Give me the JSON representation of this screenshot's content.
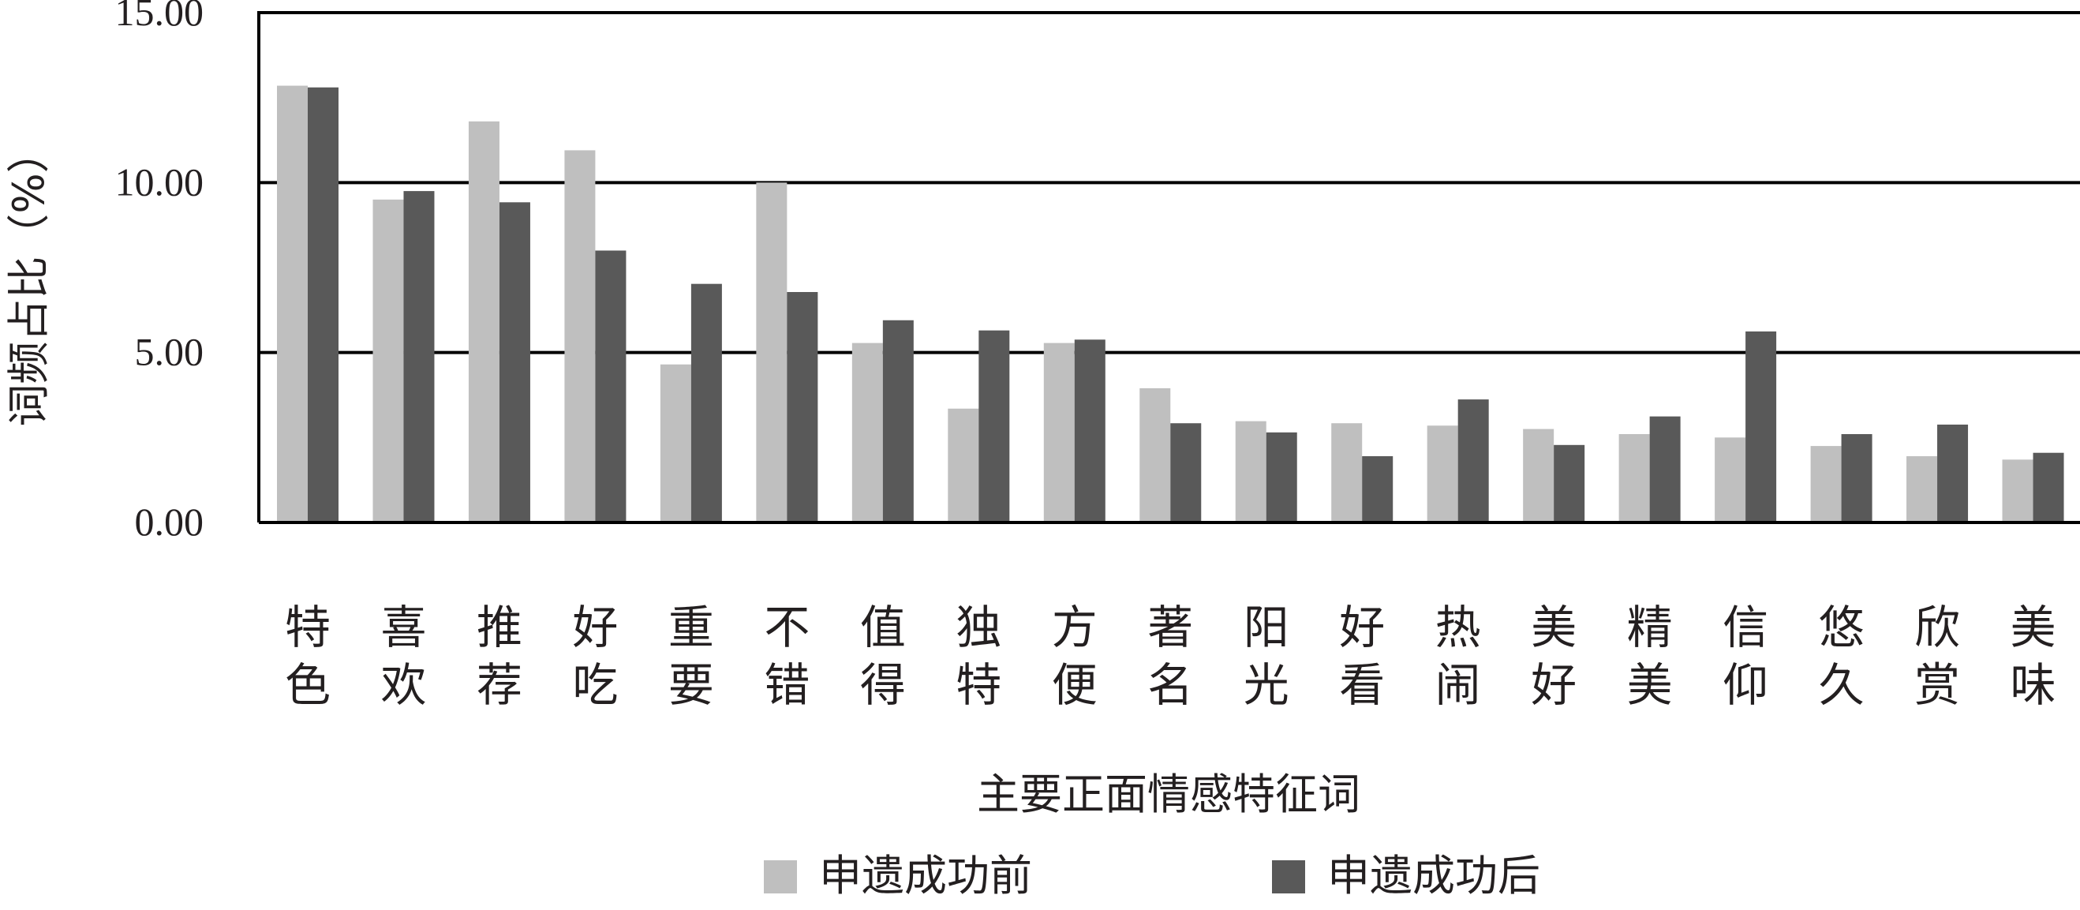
{
  "chart_data": {
    "type": "bar",
    "categories": [
      "特色",
      "喜欢",
      "推荐",
      "好吃",
      "重要",
      "不错",
      "值得",
      "独特",
      "方便",
      "著名",
      "阳光",
      "好看",
      "热闹",
      "美好",
      "精美",
      "信仰",
      "悠久",
      "欣赏",
      "美味"
    ],
    "category_lines": [
      [
        "特",
        "色"
      ],
      [
        "喜",
        "欢"
      ],
      [
        "推",
        "荐"
      ],
      [
        "好",
        "吃"
      ],
      [
        "重",
        "要"
      ],
      [
        "不",
        "错"
      ],
      [
        "值",
        "得"
      ],
      [
        "独",
        "特"
      ],
      [
        "方",
        "便"
      ],
      [
        "著",
        "名"
      ],
      [
        "阳",
        "光"
      ],
      [
        "好",
        "看"
      ],
      [
        "热",
        "闹"
      ],
      [
        "美",
        "好"
      ],
      [
        "精",
        "美"
      ],
      [
        "信",
        "仰"
      ],
      [
        "悠",
        "久"
      ],
      [
        "欣",
        "赏"
      ],
      [
        "美",
        "味"
      ]
    ],
    "series": [
      {
        "name": "申遗成功前",
        "color": "#bfbfbf",
        "values": [
          12.85,
          9.5,
          11.8,
          10.95,
          4.65,
          10.0,
          5.28,
          3.35,
          5.28,
          3.95,
          2.98,
          2.92,
          2.85,
          2.75,
          2.6,
          2.5,
          2.25,
          1.95,
          1.85
        ]
      },
      {
        "name": "申遗成功后",
        "color": "#595959",
        "values": [
          12.8,
          9.75,
          9.42,
          8.0,
          7.02,
          6.78,
          5.95,
          5.65,
          5.38,
          2.92,
          2.65,
          1.95,
          3.62,
          2.28,
          3.12,
          5.62,
          2.6,
          2.88,
          2.05
        ]
      }
    ],
    "ylim": [
      0,
      15
    ],
    "yticks": [
      "0.00",
      "5.00",
      "10.00",
      "15.00"
    ],
    "ytick_values": [
      0,
      5,
      10,
      15
    ],
    "ylabel": "词频占比（%）",
    "xlabel": "主要正面情感特征词",
    "grid": true,
    "legend_position": "bottom"
  }
}
